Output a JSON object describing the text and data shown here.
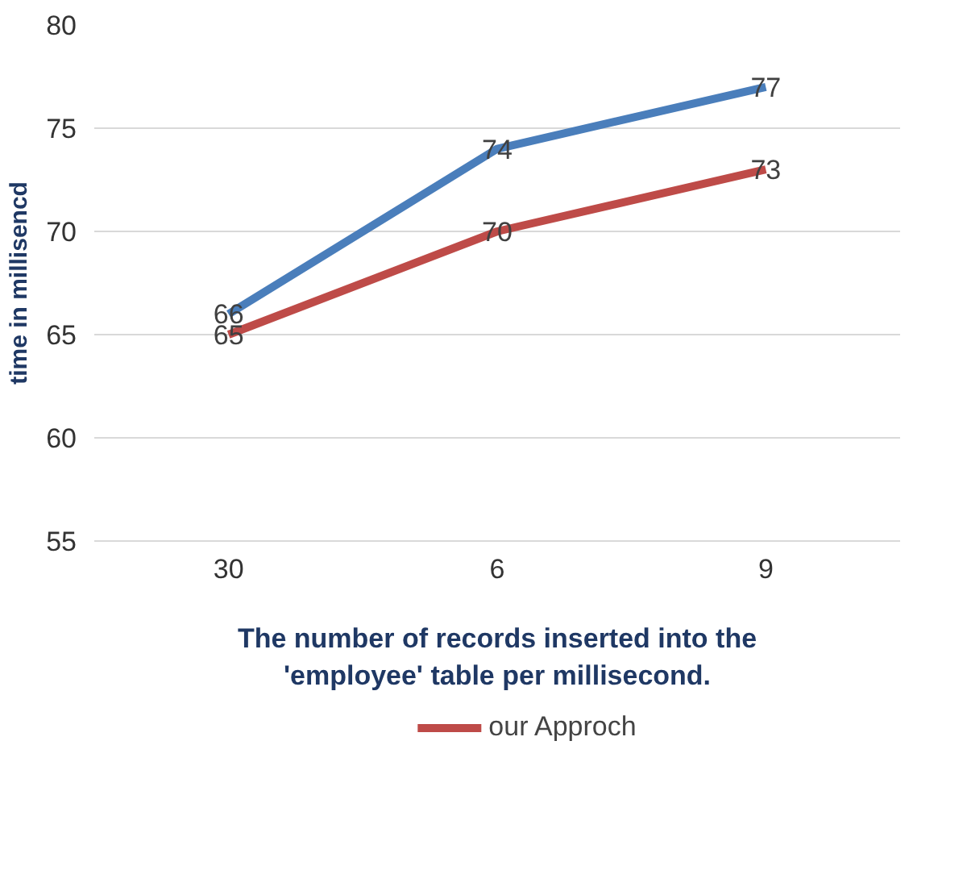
{
  "chart_data": {
    "type": "line",
    "xlabel": "The number of records inserted into the 'employee' table per millisecond.",
    "ylabel": "time in millisencd",
    "categories": [
      "30",
      "6",
      "9"
    ],
    "series": [
      {
        "color": "#4a7ebb",
        "values": [
          66,
          74,
          77
        ]
      },
      {
        "name": "our Approch",
        "color": "#be4b48",
        "values": [
          65,
          70,
          73
        ]
      }
    ],
    "ylim": [
      55,
      80
    ],
    "yticks": [
      55,
      60,
      65,
      70,
      75,
      80
    ],
    "grid": "y",
    "legend": "bottom",
    "data_labels": true,
    "marker": "none",
    "line_style": "solid"
  }
}
